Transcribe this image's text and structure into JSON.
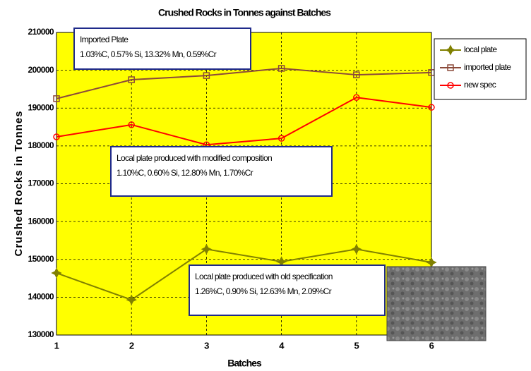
{
  "chart_data": {
    "type": "line",
    "title": "Crushed Rocks in Tonnes against Batches",
    "xlabel": "Batches",
    "ylabel": "Crushed Rocks in Tonnes",
    "x": [
      1,
      2,
      3,
      4,
      5,
      6
    ],
    "xlim": [
      1,
      6
    ],
    "xticks": [
      1,
      2,
      3,
      4,
      5,
      6
    ],
    "ylim": [
      130000,
      210000
    ],
    "yticks": [
      130000,
      140000,
      150000,
      160000,
      170000,
      180000,
      190000,
      200000,
      210000
    ],
    "grid": true,
    "background": "#ffff00",
    "legend": "upper right",
    "series": [
      {
        "name": "local plate",
        "color": "#808000",
        "marker": "star",
        "values": [
          146400,
          139300,
          152700,
          149400,
          152700,
          149200
        ]
      },
      {
        "name": "imported plate",
        "color": "#8b4a3a",
        "marker": "square",
        "values": [
          192500,
          197500,
          198600,
          200500,
          198800,
          199400
        ]
      },
      {
        "name": "new spec",
        "color": "#ff0000",
        "marker": "circle",
        "values": [
          182400,
          185600,
          180300,
          182000,
          192800,
          190200
        ]
      }
    ],
    "annotations": [
      {
        "title": "Imported Plate",
        "text": "1.03%C, 0.57% Si, 13.32% Mn, 0.59%Cr"
      },
      {
        "title": "Local  plate produced with modified composition",
        "text": "1.10%C,   0.60% Si,   12.80% Mn,    1.70%Cr"
      },
      {
        "title": "Local plate produced with old specification",
        "text": "1.26%C, 0.90% Si, 12.63% Mn, 2.09%Cr"
      }
    ]
  }
}
